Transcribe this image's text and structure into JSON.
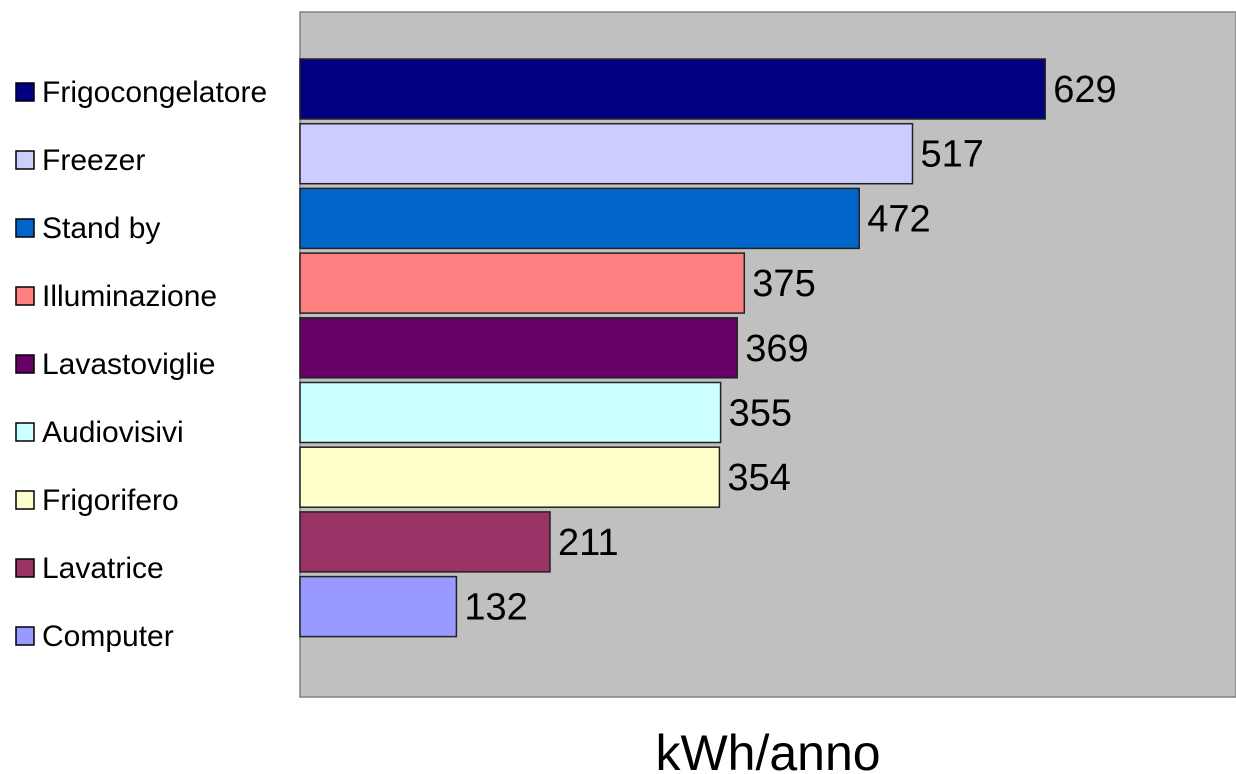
{
  "chart_data": {
    "type": "bar",
    "orientation": "horizontal",
    "title": "",
    "xlabel": "kWh/anno",
    "ylabel": "",
    "xlim": [
      0,
      790
    ],
    "grid": false,
    "legend": "left",
    "background": "#c0c0c0",
    "categories": [
      "Frigocongelatore",
      "Freezer",
      "Stand by",
      "Illuminazione",
      "Lavastoviglie",
      "Audiovisivi",
      "Frigorifero",
      "Lavatrice",
      "Computer"
    ],
    "values": [
      629,
      517,
      472,
      375,
      369,
      355,
      354,
      211,
      132
    ],
    "colors": [
      "#000080",
      "#ccccff",
      "#0066cc",
      "#ff8080",
      "#660066",
      "#ccffff",
      "#ffffcc",
      "#993366",
      "#9999ff"
    ]
  }
}
